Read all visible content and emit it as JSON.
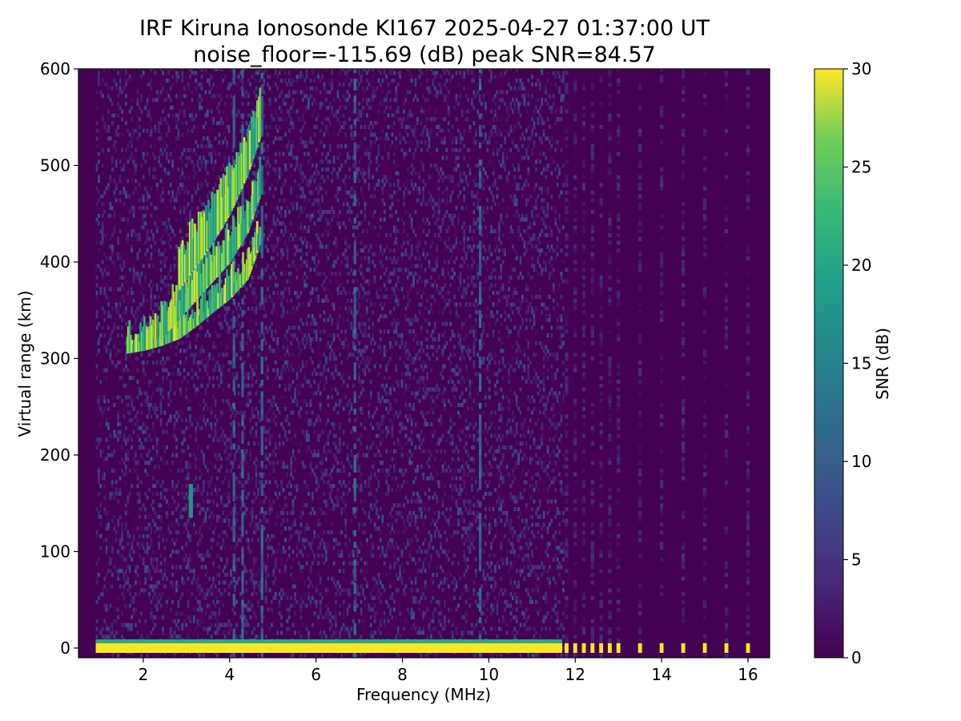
{
  "chart_data": {
    "type": "heatmap",
    "title_line1": "IRF Kiruna Ionosonde KI167 2025-04-27 01:37:00  UT",
    "title_line2": "noise_floor=-115.69 (dB) peak SNR=84.57",
    "xlabel": "Frequency (MHz)",
    "ylabel": "Virtual range (km)",
    "xlim": [
      0.5,
      16.5
    ],
    "ylim": [
      -10,
      600
    ],
    "xticks": [
      "2",
      "4",
      "6",
      "8",
      "10",
      "12",
      "14",
      "16"
    ],
    "yticks": [
      "0",
      "100",
      "200",
      "300",
      "400",
      "500",
      "600"
    ],
    "colorbar": {
      "label": "SNR (dB)",
      "range": [
        0,
        30
      ],
      "ticks": [
        "0",
        "5",
        "10",
        "15",
        "20",
        "25",
        "30"
      ],
      "colormap": "viridis"
    },
    "grid": false,
    "continuous_sweep_mhz": [
      0.9,
      11.7
    ],
    "discrete_frequencies_mhz": [
      11.8,
      12.0,
      12.2,
      12.4,
      12.6,
      12.8,
      13.0,
      13.5,
      14.0,
      14.5,
      15.0,
      15.5,
      16.0
    ],
    "ground_echo_range_km": [
      -5,
      5
    ],
    "echo_traces": [
      {
        "points": [
          [
            1.6,
            305
          ],
          [
            2.0,
            308
          ],
          [
            2.4,
            313
          ],
          [
            2.8,
            320
          ],
          [
            3.2,
            333
          ],
          [
            3.6,
            348
          ],
          [
            4.0,
            362
          ],
          [
            4.4,
            382
          ],
          [
            4.7,
            420
          ]
        ]
      },
      {
        "points": [
          [
            2.4,
            320
          ],
          [
            2.8,
            340
          ],
          [
            3.2,
            360
          ],
          [
            3.6,
            380
          ],
          [
            4.0,
            400
          ],
          [
            4.4,
            430
          ],
          [
            4.7,
            470
          ]
        ]
      },
      {
        "points": [
          [
            2.8,
            370
          ],
          [
            3.2,
            395
          ],
          [
            3.6,
            420
          ],
          [
            4.0,
            450
          ],
          [
            4.4,
            490
          ],
          [
            4.7,
            530
          ]
        ]
      }
    ],
    "vertical_streaks_mhz": [
      4.1,
      4.3,
      4.75,
      6.9,
      9.8
    ],
    "weak_patch": {
      "freq_mhz": 3.1,
      "range_km": [
        135,
        170
      ]
    }
  }
}
